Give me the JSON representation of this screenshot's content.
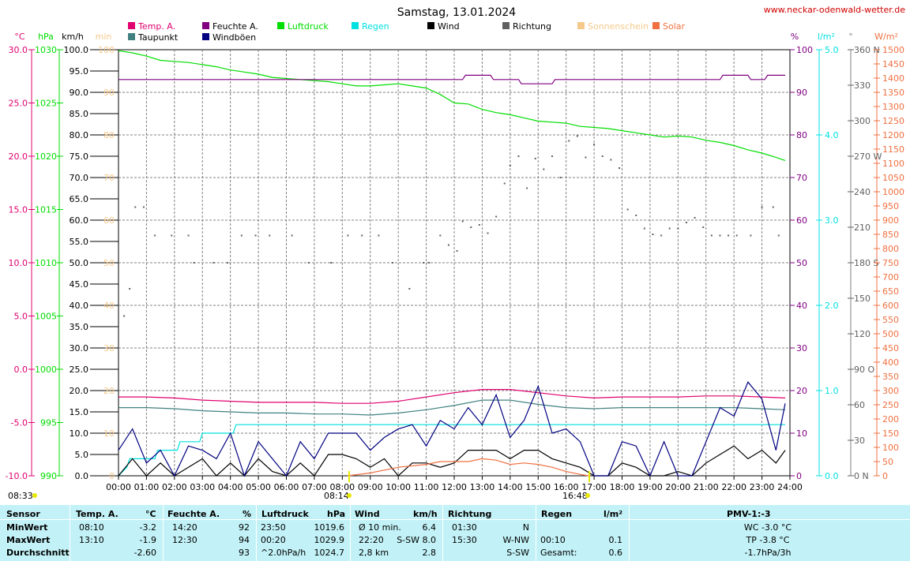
{
  "title": "Samstag, 13.01.2024",
  "website": "www.neckar-odenwald-wetter.de",
  "colors": {
    "temp": "#e0006e",
    "dew": "#408080",
    "hum": "#800080",
    "press": "#00dd00",
    "rain": "#00e0e0",
    "wind": "#000000",
    "gust": "#000080",
    "dir": "#606060",
    "sun": "#f5c98a",
    "solar": "#f07040",
    "grid": "#808080"
  },
  "legend": [
    {
      "label": "Temp. A.",
      "color": "#e0006e"
    },
    {
      "label": "Taupunkt",
      "color": "#408080"
    },
    {
      "label": "Feuchte A.",
      "color": "#800080"
    },
    {
      "label": "Windböen",
      "color": "#000080"
    },
    {
      "label": "Luftdruck",
      "color": "#00dd00"
    },
    {
      "label": "Regen",
      "color": "#00e0e0"
    },
    {
      "label": "Wind",
      "color": "#000000"
    },
    {
      "label": "Richtung",
      "color": "#606060"
    },
    {
      "label": "Sonnenschein",
      "color": "#f5c98a"
    },
    {
      "label": "Solar",
      "color": "#f07040"
    }
  ],
  "axis_units": {
    "temp": "°C",
    "press": "hPa",
    "wind": "km/h",
    "sun": "min",
    "hum": "%",
    "rain": "l/m²",
    "dir": "°",
    "solar": "W/m²"
  },
  "axes": {
    "temp_ticks": [
      "30.0",
      "25.0",
      "20.0",
      "15.0",
      "10.0",
      "5.0",
      "0.0",
      "-5.0",
      "-10.0"
    ],
    "press_ticks": [
      "1030",
      "1025",
      "1020",
      "1015",
      "1010",
      "1005",
      "1000",
      "995",
      "990"
    ],
    "wind_ticks": [
      "100.0",
      "95.0",
      "90.0",
      "85.0",
      "80.0",
      "75.0",
      "70.0",
      "65.0",
      "60.0",
      "55.0",
      "50.0",
      "45.0",
      "40.0",
      "35.0",
      "30.0",
      "25.0",
      "20.0",
      "15.0",
      "10.0",
      "5.0",
      "0.0"
    ],
    "sun_ticks": [
      "100",
      "90",
      "80",
      "70",
      "60",
      "50",
      "40",
      "30",
      "20",
      "10",
      "0"
    ],
    "hum_ticks": [
      "100",
      "90",
      "80",
      "70",
      "60",
      "50",
      "40",
      "30",
      "20",
      "10",
      "0"
    ],
    "rain_ticks": [
      "5.0",
      "4.0",
      "3.0",
      "2.0",
      "1.0",
      "0.0"
    ],
    "dir_ticks": [
      "360 N",
      "330",
      "300",
      "270 W",
      "240",
      "210",
      "180 S",
      "150",
      "120",
      "90 O",
      "60",
      "30",
      "0 N"
    ],
    "solar_ticks": [
      "1500",
      "1450",
      "1400",
      "1350",
      "1300",
      "1250",
      "1200",
      "1150",
      "1100",
      "1050",
      "1000",
      "950",
      "900",
      "850",
      "800",
      "750",
      "700",
      "650",
      "600",
      "550",
      "500",
      "450",
      "400",
      "350",
      "300",
      "250",
      "200",
      "150",
      "100",
      "50",
      "0"
    ],
    "x_ticks": [
      "00:00",
      "01:00",
      "02:00",
      "03:00",
      "04:00",
      "05:00",
      "06:00",
      "07:00",
      "08:00",
      "09:00",
      "10:00",
      "11:00",
      "12:00",
      "13:00",
      "14:00",
      "15:00",
      "16:00",
      "17:00",
      "18:00",
      "19:00",
      "20:00",
      "21:00",
      "22:00",
      "23:00",
      "24:00"
    ]
  },
  "markers": {
    "sunrise": "08:14",
    "sunset": "16:48",
    "sun_duration": "08:33"
  },
  "chart_data": {
    "type": "line",
    "title": "Samstag, 13.01.2024",
    "x_unit": "hours",
    "xlim": [
      0,
      24
    ],
    "series": [
      {
        "name": "Luftdruck",
        "axis": "hPa",
        "ylim": [
          990,
          1030
        ],
        "x": [
          0,
          0.5,
          1,
          1.5,
          2,
          2.5,
          3,
          3.5,
          4,
          4.5,
          5,
          5.5,
          6,
          6.5,
          7,
          7.5,
          8,
          8.5,
          9,
          9.5,
          10,
          10.5,
          11,
          11.5,
          12,
          12.5,
          13,
          13.5,
          14,
          14.5,
          15,
          15.5,
          16,
          16.5,
          17,
          17.5,
          18,
          18.5,
          19,
          19.5,
          20,
          20.5,
          21,
          21.5,
          22,
          22.5,
          23,
          23.5,
          23.83
        ],
        "y": [
          1029.9,
          1029.7,
          1029.4,
          1029.0,
          1028.9,
          1028.8,
          1028.6,
          1028.4,
          1028.1,
          1027.9,
          1027.7,
          1027.4,
          1027.3,
          1027.2,
          1027.1,
          1027.0,
          1026.8,
          1026.6,
          1026.6,
          1026.7,
          1026.8,
          1026.6,
          1026.4,
          1025.8,
          1025.0,
          1024.9,
          1024.4,
          1024.1,
          1023.9,
          1023.6,
          1023.3,
          1023.2,
          1023.1,
          1022.8,
          1022.7,
          1022.6,
          1022.4,
          1022.2,
          1022.0,
          1021.8,
          1021.9,
          1021.8,
          1021.5,
          1021.3,
          1021.0,
          1020.6,
          1020.3,
          1019.9,
          1019.6
        ]
      },
      {
        "name": "Feuchte A.",
        "axis": "%",
        "ylim": [
          0,
          100
        ],
        "x": [
          0,
          12.3,
          12.4,
          13.3,
          13.4,
          14.3,
          14.4,
          15.5,
          15.6,
          21.5,
          21.6,
          22.5,
          22.6,
          23.1,
          23.2,
          23.83
        ],
        "y": [
          93,
          93,
          94,
          94,
          93,
          93,
          92,
          92,
          93,
          93,
          94,
          94,
          93,
          93,
          94,
          94
        ]
      },
      {
        "name": "Temp. A.",
        "axis": "°C",
        "ylim": [
          -10,
          30
        ],
        "x": [
          0,
          1,
          2,
          3,
          4,
          5,
          6,
          7,
          8,
          9,
          10,
          11,
          12,
          13,
          14,
          15,
          16,
          17,
          18,
          19,
          20,
          21,
          22,
          23,
          23.83
        ],
        "y": [
          -2.6,
          -2.6,
          -2.7,
          -2.9,
          -3.0,
          -3.1,
          -3.1,
          -3.1,
          -3.2,
          -3.2,
          -3.0,
          -2.6,
          -2.2,
          -1.9,
          -1.9,
          -2.2,
          -2.5,
          -2.7,
          -2.6,
          -2.6,
          -2.6,
          -2.5,
          -2.5,
          -2.6,
          -2.7
        ]
      },
      {
        "name": "Taupunkt",
        "axis": "°C",
        "ylim": [
          -10,
          30
        ],
        "x": [
          0,
          1,
          2,
          3,
          4,
          5,
          6,
          7,
          8,
          9,
          10,
          11,
          12,
          13,
          14,
          15,
          16,
          17,
          18,
          19,
          20,
          21,
          22,
          23,
          23.83
        ],
        "y": [
          -3.6,
          -3.6,
          -3.7,
          -3.9,
          -4.0,
          -4.1,
          -4.1,
          -4.2,
          -4.2,
          -4.3,
          -4.1,
          -3.8,
          -3.4,
          -2.9,
          -2.9,
          -3.3,
          -3.6,
          -3.7,
          -3.6,
          -3.6,
          -3.6,
          -3.6,
          -3.6,
          -3.7,
          -3.8
        ]
      },
      {
        "name": "Regen",
        "axis": "l/m²",
        "ylim": [
          0,
          5
        ],
        "x": [
          0,
          0.3,
          0.4,
          1.3,
          1.4,
          2.1,
          2.2,
          2.9,
          3.0,
          4.1,
          4.2,
          23.83
        ],
        "y": [
          0,
          0.1,
          0.2,
          0.2,
          0.3,
          0.3,
          0.4,
          0.4,
          0.5,
          0.5,
          0.6,
          0.6
        ]
      },
      {
        "name": "Wind",
        "axis": "km/h",
        "ylim": [
          0,
          100
        ],
        "x": [
          0,
          0.5,
          1,
          1.5,
          2,
          2.5,
          3,
          3.5,
          4,
          4.5,
          5,
          5.5,
          6,
          6.5,
          7,
          7.5,
          8,
          8.5,
          9,
          9.5,
          10,
          10.5,
          11,
          11.5,
          12,
          12.5,
          13,
          13.5,
          14,
          14.5,
          15,
          15.5,
          16,
          16.5,
          17,
          17.5,
          18,
          18.5,
          19,
          19.5,
          20,
          20.5,
          21,
          21.5,
          22,
          22.5,
          23,
          23.5,
          23.83
        ],
        "y": [
          0,
          4,
          0,
          3,
          0,
          2,
          4,
          0,
          3,
          0,
          4,
          1,
          0,
          3,
          0,
          5,
          5,
          4,
          2,
          4,
          0,
          3,
          3,
          2,
          3,
          6,
          6,
          6,
          4,
          6,
          6,
          4,
          3,
          2,
          0,
          0,
          3,
          2,
          0,
          0,
          1,
          0,
          3,
          5,
          7,
          4,
          6,
          3,
          6
        ]
      },
      {
        "name": "Windböen",
        "axis": "km/h",
        "ylim": [
          0,
          100
        ],
        "x": [
          0,
          0.5,
          1,
          1.5,
          2,
          2.5,
          3,
          3.5,
          4,
          4.5,
          5,
          5.5,
          6,
          6.5,
          7,
          7.5,
          8,
          8.5,
          9,
          9.5,
          10,
          10.5,
          11,
          11.5,
          12,
          12.5,
          13,
          13.5,
          14,
          14.5,
          15,
          15.5,
          16,
          16.5,
          17,
          17.5,
          18,
          18.5,
          19,
          19.5,
          20,
          20.5,
          21,
          21.5,
          22,
          22.5,
          23,
          23.5,
          23.83
        ],
        "y": [
          6,
          11,
          3,
          6,
          0,
          7,
          6,
          4,
          10,
          0,
          8,
          4,
          0,
          8,
          4,
          10,
          10,
          10,
          6,
          9,
          11,
          12,
          7,
          13,
          11,
          16,
          12,
          19,
          9,
          13,
          21,
          10,
          11,
          8,
          0,
          0,
          8,
          7,
          0,
          8,
          0,
          0,
          8,
          16,
          14,
          22,
          18,
          6,
          17
        ]
      },
      {
        "name": "Solar",
        "axis": "W/m²",
        "ylim": [
          0,
          1500
        ],
        "x": [
          8.2,
          9,
          10,
          11,
          11.5,
          12,
          12.5,
          13,
          13.5,
          14,
          14.5,
          15,
          15.5,
          16,
          16.5,
          16.8
        ],
        "y": [
          0,
          10,
          30,
          40,
          50,
          50,
          50,
          60,
          55,
          40,
          45,
          40,
          30,
          15,
          5,
          0
        ]
      },
      {
        "name": "Richtung",
        "axis": "°",
        "ylim": [
          0,
          360
        ],
        "x": [
          0.2,
          0.4,
          0.6,
          0.9,
          1.3,
          1.9,
          2.5,
          2.7,
          3.4,
          3.9,
          4.4,
          4.9,
          5.4,
          6.2,
          6.8,
          7.6,
          8.2,
          8.7,
          9.3,
          9.8,
          10.4,
          10.9,
          11.1,
          11.5,
          11.8,
          12.1,
          12.3,
          12.6,
          12.9,
          13.2,
          13.5,
          13.8,
          14.0,
          14.3,
          14.6,
          14.9,
          15.2,
          15.5,
          15.8,
          16.1,
          16.4,
          16.7,
          17.0,
          17.3,
          17.6,
          17.9,
          18.2,
          18.5,
          18.8,
          19.1,
          19.4,
          19.7,
          20.0,
          20.3,
          20.6,
          20.9,
          21.2,
          21.5,
          21.8,
          22.1,
          22.6,
          23.0,
          23.4,
          23.6
        ],
        "y": [
          135,
          158,
          227,
          227,
          203,
          203,
          203,
          180,
          180,
          180,
          203,
          203,
          203,
          203,
          180,
          180,
          203,
          203,
          203,
          180,
          158,
          180,
          180,
          203,
          195,
          190,
          215,
          210,
          212,
          205,
          219,
          247,
          262,
          270,
          243,
          268,
          259,
          270,
          252,
          283,
          287,
          269,
          280,
          270,
          267,
          260,
          225,
          220,
          209,
          204,
          203,
          209,
          209,
          214,
          218,
          210,
          203,
          203,
          203,
          203,
          203,
          227,
          227,
          203
        ]
      }
    ]
  },
  "table": {
    "headers": {
      "sensor": "Sensor",
      "temp": "Temp. A.",
      "temp_u": "°C",
      "hum": "Feuchte A.",
      "hum_u": "%",
      "press": "Luftdruck",
      "press_u": "hPa",
      "wind": "Wind",
      "wind_u": "km/h",
      "dir": "Richtung",
      "rain": "Regen",
      "rain_u": "l/m²",
      "pmv": "PMV-1:-3"
    },
    "rows": [
      {
        "label": "MinWert",
        "temp_t": "08:10",
        "temp_v": "-3.2",
        "hum_t": "14:20",
        "hum_v": "92",
        "press_t": "23:50",
        "press_v": "1019.6",
        "wind_t": "Ø 10 min.",
        "wind_v": "6.4",
        "dir_t": "01:30",
        "dir_v": "N",
        "rain_t": "",
        "rain_v": "",
        "pmv": "WC -3.0 °C"
      },
      {
        "label": "MaxWert",
        "temp_t": "13:10",
        "temp_v": "-1.9",
        "hum_t": "12:30",
        "hum_v": "94",
        "press_t": "00:20",
        "press_v": "1029.9",
        "wind_t": "22:20",
        "wind_v": "S-SW 8.0",
        "dir_t": "15:30",
        "dir_v": "W-NW",
        "rain_t": "00:10",
        "rain_v": "0.1",
        "pmv": "TP -3.8 °C"
      },
      {
        "label": "Durchschnitt",
        "temp_t": "",
        "temp_v": "-2.60",
        "hum_t": "",
        "hum_v": "93",
        "press_t": "^2.0hPa/h",
        "press_v": "1024.7",
        "wind_t": "2,8 km",
        "wind_v": "2.8",
        "dir_t": "",
        "dir_v": "S-SW",
        "rain_t": "Gesamt:",
        "rain_v": "0.6",
        "pmv": "-1.7hPa/3h"
      }
    ]
  }
}
